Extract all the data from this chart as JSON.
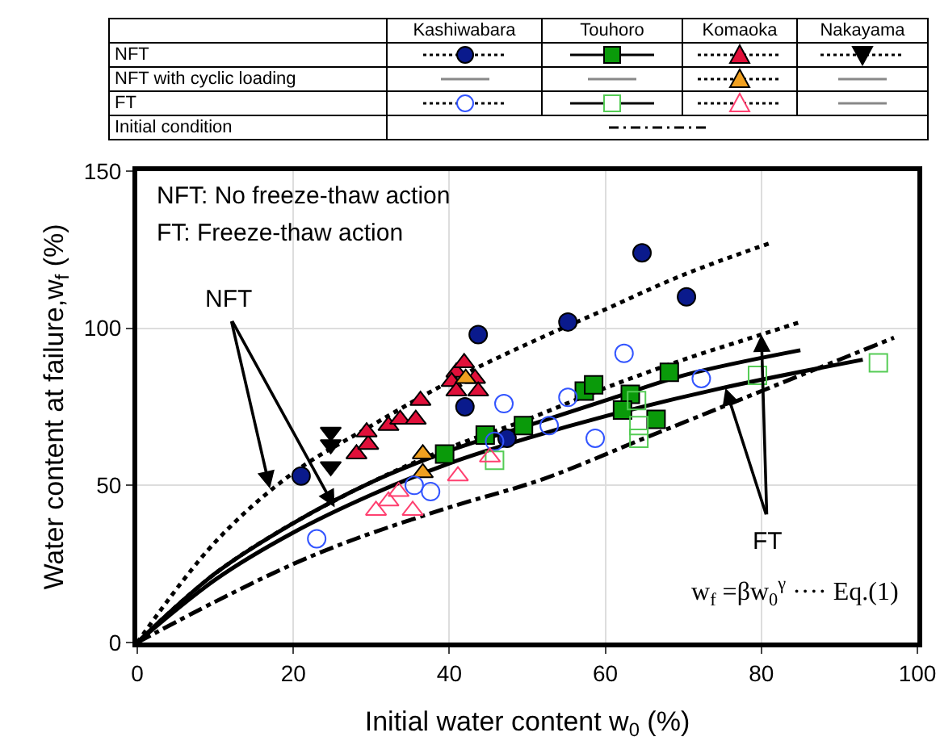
{
  "chart_data": {
    "type": "scatter",
    "xlabel": "Initial water content w$_{0}$ (%)",
    "ylabel": "Water content at failure,w$_{f}$ (%)",
    "xlim": [
      0,
      100
    ],
    "xticks": [
      0,
      20,
      40,
      60,
      80,
      100
    ],
    "ylim": [
      0,
      150
    ],
    "yticks": [
      0,
      50,
      100,
      150
    ],
    "grid": true,
    "legend": false,
    "annotations": [
      "Kashiwabara",
      "Touhoro",
      "Komaoka",
      "Nakayama",
      "NFT",
      "NFT with cyclic loading",
      "FT",
      "Initial condition",
      "NFT: No freeze-thaw action",
      "FT: Freeze-thaw action",
      {
        "text": "NFT",
        "x": 17,
        "y": 49
      },
      {
        "text": "FT",
        "x": 80,
        "y": 98
      },
      "w$_{f}$ =βw$_{0}$$^{γ}$ ···· Eq.(1)"
    ],
    "series": [
      {
        "type": "line",
        "color": "#000000",
        "line_style": "dotted",
        "x": [
          0,
          10,
          20,
          30,
          40,
          50,
          60,
          70,
          81
        ],
        "values": [
          0,
          32,
          54,
          69,
          83,
          95,
          106,
          117,
          127
        ]
      },
      {
        "type": "line",
        "color": "#000000",
        "line_style": "dotted",
        "x": [
          0,
          10,
          20,
          30,
          40,
          50,
          60,
          70,
          80,
          85
        ],
        "values": [
          0,
          22,
          38,
          51,
          62,
          71,
          81,
          90,
          98,
          102
        ]
      },
      {
        "type": "line",
        "color": "#000000",
        "line_style": "solid",
        "x": [
          0,
          10,
          20,
          30,
          40,
          50,
          60,
          70,
          85
        ],
        "values": [
          0,
          22,
          38,
          51,
          61,
          69,
          77,
          85,
          93
        ]
      },
      {
        "type": "line",
        "color": "#000000",
        "line_style": "solid",
        "x": [
          0,
          10,
          20,
          30,
          40,
          50,
          60,
          75,
          93
        ],
        "values": [
          0,
          20,
          35,
          47,
          57,
          65,
          72,
          81,
          90
        ]
      },
      {
        "type": "line",
        "color": "#000000",
        "line_style": "dashdot",
        "x": [
          0,
          10,
          20,
          28,
          40,
          52,
          65,
          80,
          97
        ],
        "values": [
          0,
          13,
          25,
          33,
          43,
          52,
          65,
          80,
          97
        ]
      },
      {
        "color": "#0a1a8c",
        "marker": "circle",
        "x": [
          21,
          43.7,
          42,
          47.4,
          55.2,
          64.7,
          70.4
        ],
        "values": [
          53,
          98,
          75,
          65,
          102,
          124,
          110
        ]
      },
      {
        "color": "#0a9a0a",
        "marker": "square",
        "x": [
          39.4,
          44.6,
          49.5,
          57.3,
          58.5,
          63.2,
          62.2,
          66.5,
          68.2
        ],
        "values": [
          60,
          66,
          69,
          80,
          82,
          79,
          74,
          71,
          86
        ]
      },
      {
        "color": "#e0103a",
        "marker": "triangle",
        "x": [
          28.1,
          29.6,
          29.4,
          32.2,
          33.7,
          35.7,
          36.3,
          40.9,
          41.9,
          40.3,
          43.3,
          43.7,
          40.9
        ],
        "values": [
          60,
          63,
          67,
          69,
          71,
          71,
          77,
          86,
          89,
          83,
          84,
          80,
          80
        ]
      },
      {
        "color": "#000000",
        "marker": "triangle-down",
        "x": [
          24.8,
          24.8,
          24.8
        ],
        "values": [
          67,
          63,
          56
        ]
      },
      {
        "color": "#f0a020",
        "marker": "triangle",
        "x": [
          42.1,
          36.6,
          36.6
        ],
        "values": [
          84,
          60,
          54
        ]
      },
      {
        "color": "#3355ff",
        "marker": "circle-open",
        "x": [
          23,
          35.5,
          37.6,
          47,
          45.8,
          62.4,
          55.2,
          52.8,
          58.7,
          72.3
        ],
        "values": [
          33,
          50,
          48,
          76,
          64,
          92,
          78,
          69,
          65,
          84
        ]
      },
      {
        "color": "#55cc55",
        "marker": "square-open",
        "x": [
          45.8,
          64,
          64.3,
          64.3,
          79.5,
          95
        ],
        "values": [
          58,
          77,
          69,
          65,
          85,
          89
        ]
      },
      {
        "color": "#ff4070",
        "marker": "triangle-open",
        "x": [
          30.6,
          32.2,
          33.5,
          35.3,
          41.1,
          45.2
        ],
        "values": [
          42,
          45,
          48,
          42,
          53,
          59
        ]
      }
    ]
  }
}
